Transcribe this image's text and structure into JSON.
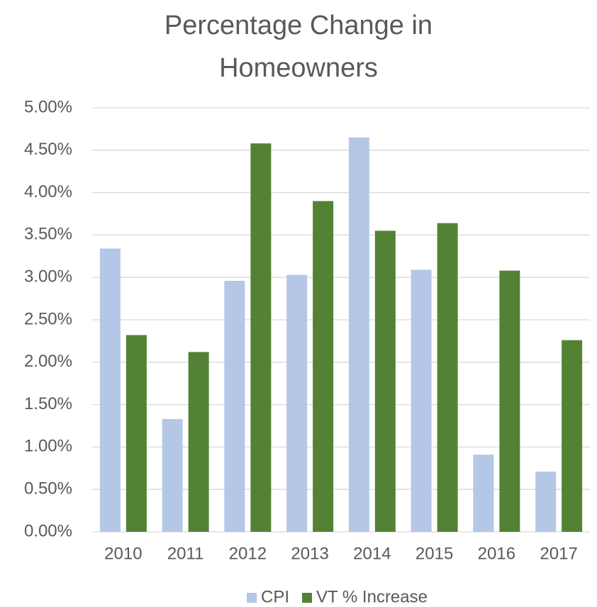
{
  "chart_data": {
    "type": "bar",
    "title": "Percentage Change in Homeowners",
    "categories": [
      "2010",
      "2011",
      "2012",
      "2013",
      "2014",
      "2015",
      "2016",
      "2017"
    ],
    "series": [
      {
        "name": "CPI",
        "color": "#b4c7e7",
        "values": [
          3.34,
          1.33,
          2.96,
          3.03,
          4.65,
          3.09,
          0.91,
          0.71
        ]
      },
      {
        "name": "VT % Increase",
        "color": "#548235",
        "values": [
          2.32,
          2.12,
          4.58,
          3.9,
          3.55,
          3.64,
          3.08,
          2.26
        ]
      }
    ],
    "ylim": [
      0,
      5
    ],
    "yticks": [
      {
        "value": 0,
        "label": "0.00%"
      },
      {
        "value": 0.5,
        "label": "0.50%"
      },
      {
        "value": 1,
        "label": "1.00%"
      },
      {
        "value": 1.5,
        "label": "1.50%"
      },
      {
        "value": 2,
        "label": "2.00%"
      },
      {
        "value": 2.5,
        "label": "2.50%"
      },
      {
        "value": 3,
        "label": "3.00%"
      },
      {
        "value": 3.5,
        "label": "3.50%"
      },
      {
        "value": 4,
        "label": "4.00%"
      },
      {
        "value": 4.5,
        "label": "4.50%"
      },
      {
        "value": 5,
        "label": "5.00%"
      }
    ],
    "grid": true,
    "legend": "bottom"
  }
}
